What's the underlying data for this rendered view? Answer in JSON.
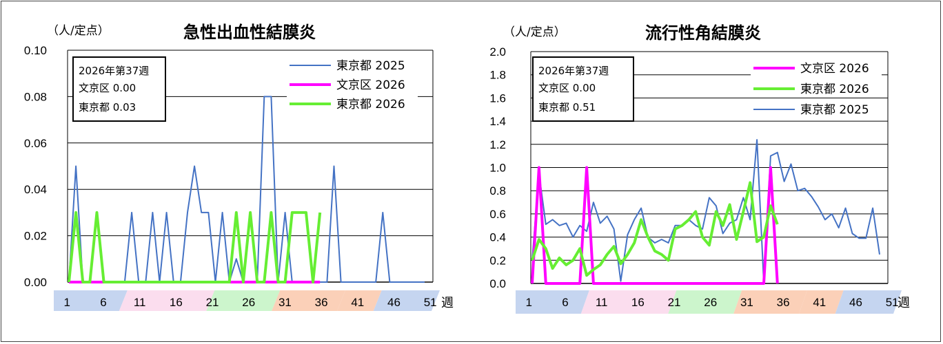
{
  "chart_data": [
    {
      "type": "line",
      "title": "急性出血性結膜炎",
      "unit_label": "（人/定点）",
      "xlabel": "週",
      "ylim": [
        0,
        0.1
      ],
      "yticks": [
        "0.00",
        "0.02",
        "0.04",
        "0.06",
        "0.08",
        "0.10"
      ],
      "ytick_values": [
        0,
        0.02,
        0.04,
        0.06,
        0.08,
        0.1
      ],
      "xtick_labels": [
        "1",
        "6",
        "11",
        "16",
        "21",
        "26",
        "31",
        "36",
        "41",
        "46",
        "51"
      ],
      "info_box": [
        "2026年第37週",
        "文京区  0.00",
        "東京都  0.03"
      ],
      "series": [
        {
          "name": "東京都 2025",
          "color": "#4472C4",
          "width": 2,
          "values": [
            0,
            0.05,
            0,
            0,
            0,
            0,
            0,
            0,
            0,
            0.03,
            0,
            0,
            0.03,
            0,
            0.03,
            0,
            0,
            0.03,
            0.05,
            0.03,
            0.03,
            0,
            0.03,
            0,
            0.01,
            0,
            0,
            0,
            0.08,
            0.08,
            0,
            0.03,
            0,
            0,
            0,
            0,
            0,
            0,
            0.05,
            0,
            0,
            0,
            0,
            0,
            0,
            0.03,
            0,
            0,
            0,
            0,
            0,
            0
          ]
        },
        {
          "name": "文京区 2026",
          "color": "#FF00FF",
          "width": 4,
          "values": [
            0,
            0,
            0,
            0,
            0,
            0,
            0,
            0,
            0,
            0,
            0,
            0,
            0,
            0,
            0,
            0,
            0,
            0,
            0,
            0,
            0,
            0,
            0,
            0,
            0,
            0,
            0,
            0,
            0,
            0,
            0,
            0,
            0,
            0,
            0,
            0,
            0
          ]
        },
        {
          "name": "東京都 2026",
          "color": "#66EE33",
          "width": 4,
          "values": [
            0,
            0.03,
            0,
            0,
            0.03,
            0,
            0,
            0,
            0,
            0,
            0,
            0,
            0,
            0,
            0,
            0,
            0,
            0,
            0,
            0,
            0,
            0,
            0,
            0,
            0.03,
            0,
            0.03,
            0,
            0,
            0.03,
            0,
            0,
            0.03,
            0.03,
            0.03,
            0,
            0.03
          ]
        }
      ],
      "legend": [
        {
          "name": "東京都 2025",
          "color": "#4472C4",
          "width": 2
        },
        {
          "name": "文京区 2026",
          "color": "#FF00FF",
          "width": 4
        },
        {
          "name": "東京都 2026",
          "color": "#66EE33",
          "width": 4
        }
      ]
    },
    {
      "type": "line",
      "title": "流行性角結膜炎",
      "unit_label": "（人/定点）",
      "xlabel": "週",
      "ylim": [
        0,
        2
      ],
      "yticks": [
        "0.0",
        "0.2",
        "0.4",
        "0.6",
        "0.8",
        "1.0",
        "1.2",
        "1.4",
        "1.6",
        "1.8",
        "2.0"
      ],
      "ytick_values": [
        0,
        0.2,
        0.4,
        0.6,
        0.8,
        1.0,
        1.2,
        1.4,
        1.6,
        1.8,
        2.0
      ],
      "xtick_labels": [
        "1",
        "6",
        "11",
        "16",
        "21",
        "26",
        "31",
        "36",
        "41",
        "46",
        "51"
      ],
      "info_box": [
        "2026年第37週",
        "文京区  0.00",
        "東京都  0.51"
      ],
      "series": [
        {
          "name": "東京都 2025",
          "color": "#4472C4",
          "width": 2,
          "values": [
            0.2,
            0.95,
            0.51,
            0.55,
            0.5,
            0.52,
            0.4,
            0.5,
            0.45,
            0.7,
            0.52,
            0.58,
            0.47,
            0.02,
            0.42,
            0.55,
            0.65,
            0.4,
            0.35,
            0.38,
            0.35,
            0.5,
            0.5,
            0.55,
            0.5,
            0.47,
            0.74,
            0.67,
            0.43,
            0.52,
            0.55,
            0.74,
            0.55,
            1.24,
            0.01,
            1.1,
            1.13,
            0.88,
            1.03,
            0.8,
            0.82,
            0.75,
            0.66,
            0.55,
            0.6,
            0.48,
            0.65,
            0.43,
            0.39,
            0.39,
            0.65,
            0.25
          ]
        },
        {
          "name": "文京区 2026",
          "color": "#FF00FF",
          "width": 4,
          "values": [
            0,
            1.0,
            0,
            0,
            0,
            0,
            0,
            0,
            1.0,
            0,
            0,
            0,
            0,
            0,
            0,
            0,
            0,
            0,
            0,
            0,
            0,
            0,
            0,
            0,
            0,
            0,
            0,
            0,
            0,
            0,
            0,
            0,
            0,
            0,
            0,
            1.0,
            0
          ]
        },
        {
          "name": "東京都 2026",
          "color": "#66EE33",
          "width": 4,
          "values": [
            0.2,
            0.38,
            0.3,
            0.13,
            0.22,
            0.16,
            0.2,
            0.3,
            0.07,
            0.12,
            0.16,
            0.25,
            0.32,
            0.17,
            0.25,
            0.35,
            0.55,
            0.4,
            0.28,
            0.25,
            0.2,
            0.47,
            0.5,
            0.55,
            0.62,
            0.4,
            0.33,
            0.62,
            0.5,
            0.68,
            0.38,
            0.62,
            0.87,
            0.36,
            0.4,
            0.67,
            0.51
          ]
        }
      ],
      "legend": [
        {
          "name": "文京区 2026",
          "color": "#FF00FF",
          "width": 4
        },
        {
          "name": "東京都 2026",
          "color": "#66EE33",
          "width": 4
        },
        {
          "name": "東京都 2025",
          "color": "#4472C4",
          "width": 2
        }
      ]
    }
  ],
  "season_bands": [
    {
      "from": 1,
      "to": 9,
      "color": "#C5D5F0"
    },
    {
      "from": 10,
      "to": 21,
      "color": "#FBDDEE"
    },
    {
      "from": 22,
      "to": 30,
      "color": "#CCF5CC"
    },
    {
      "from": 31,
      "to": 39,
      "color": "#FBD0B8"
    },
    {
      "from": 40,
      "to": 44,
      "color": "#FBD0B8"
    },
    {
      "from": 45,
      "to": 52,
      "color": "#C5D5F0"
    }
  ]
}
